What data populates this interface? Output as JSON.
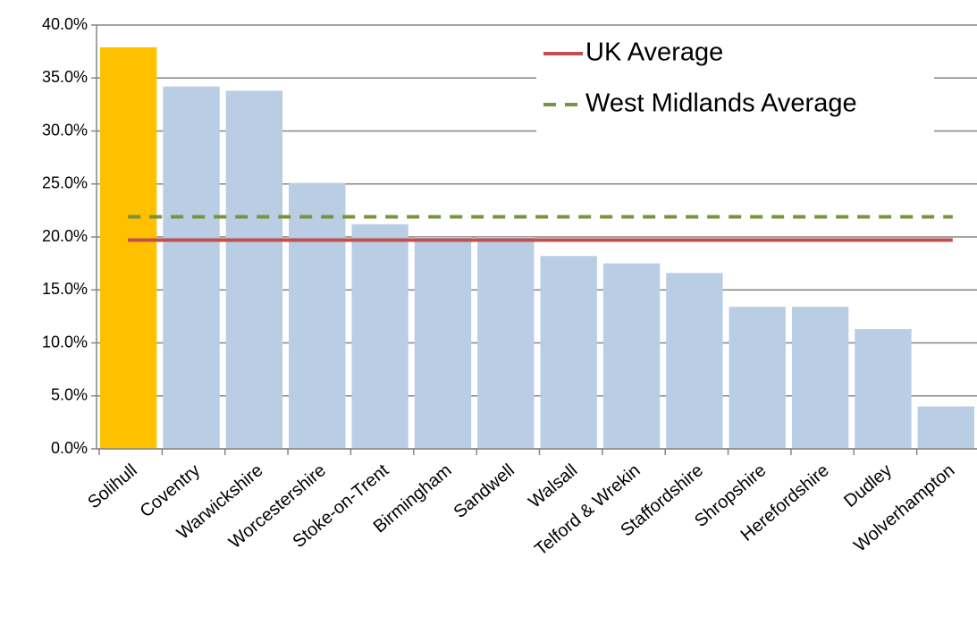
{
  "chart_data": {
    "type": "bar",
    "categories": [
      "Solihull",
      "Coventry",
      "Warwickshire",
      "Worcestershire",
      "Stoke-on-Trent",
      "Birmingham",
      "Sandwell",
      "Walsall",
      "Telford & Wrekin",
      "Staffordshire",
      "Shropshire",
      "Herefordshire",
      "Dudley",
      "Wolverhampton"
    ],
    "values": [
      37.9,
      34.2,
      33.8,
      25.1,
      21.2,
      20.0,
      20.0,
      18.2,
      17.5,
      16.6,
      13.4,
      13.4,
      11.3,
      4.0
    ],
    "bar_colors": [
      "#ffc000",
      "#b9cde5",
      "#b9cde5",
      "#b9cde5",
      "#b9cde5",
      "#b9cde5",
      "#b9cde5",
      "#b9cde5",
      "#b9cde5",
      "#b9cde5",
      "#b9cde5",
      "#b9cde5",
      "#b9cde5",
      "#b9cde5"
    ],
    "reference_lines": [
      {
        "name": "UK Average",
        "value": 19.7,
        "color": "#c0504d",
        "dashed": false
      },
      {
        "name": "West Midlands Average",
        "value": 21.9,
        "color": "#77933c",
        "dashed": true
      }
    ],
    "ylim": [
      0,
      40
    ],
    "yticks": [
      {
        "value": 0,
        "label": "0.0%"
      },
      {
        "value": 5,
        "label": "5.0%"
      },
      {
        "value": 10,
        "label": "10.0%"
      },
      {
        "value": 15,
        "label": "15.0%"
      },
      {
        "value": 20,
        "label": "20.0%"
      },
      {
        "value": 25,
        "label": "25.0%"
      },
      {
        "value": 30,
        "label": "30.0%"
      },
      {
        "value": 35,
        "label": "35.0%"
      },
      {
        "value": 40,
        "label": "40.0%"
      }
    ],
    "grid": true,
    "legend": "upper right"
  }
}
